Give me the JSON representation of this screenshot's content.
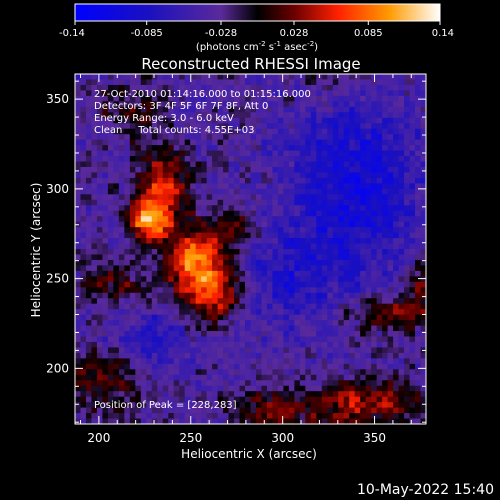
{
  "chart_data": {
    "type": "heatmap",
    "title": "Reconstructed RHESSI Image",
    "xlabel": "Heliocentric X (arcsec)",
    "ylabel": "Heliocentric Y (arcsec)",
    "xlim": [
      187,
      378
    ],
    "ylim": [
      169,
      364
    ],
    "xticks": [
      200,
      250,
      300,
      350
    ],
    "yticks": [
      200,
      250,
      300,
      350
    ],
    "colorbar": {
      "ticks": [
        "-0.14",
        "-0.085",
        "-0.028",
        "0.028",
        "0.085",
        "0.14"
      ],
      "range": [
        -0.14,
        0.14
      ],
      "unit_prefix": "(photons cm",
      "unit_exp1": "-2",
      "unit_mid": " s",
      "unit_exp2": "-1",
      "unit_mid2": " asec",
      "unit_exp3": "-2",
      "unit_suffix": ")"
    },
    "annotations": [
      "27-Oct-2010 01:14:16.000 to 01:15:16.000",
      "Detectors: 3F 4F 5F 6F 7F 8F, Att 0",
      "Energy Range: 3.0 - 6.0 keV",
      "Clean     Total counts: 4.55E+03"
    ],
    "peak_label": "Position of Peak = [228,283]",
    "peak": [
      228,
      283
    ],
    "sources": [
      {
        "x": 228,
        "y": 283,
        "amp": 0.14,
        "sx": 8,
        "sy": 9
      },
      {
        "x": 236,
        "y": 304,
        "amp": 0.085,
        "sx": 10,
        "sy": 11
      },
      {
        "x": 253,
        "y": 262,
        "amp": 0.11,
        "sx": 12,
        "sy": 14
      },
      {
        "x": 262,
        "y": 242,
        "amp": 0.08,
        "sx": 12,
        "sy": 12
      },
      {
        "x": 207,
        "y": 247,
        "amp": 0.05,
        "sx": 12,
        "sy": 8
      },
      {
        "x": 218,
        "y": 342,
        "amp": 0.04,
        "sx": 13,
        "sy": 12
      },
      {
        "x": 275,
        "y": 280,
        "amp": 0.04,
        "sx": 8,
        "sy": 8
      },
      {
        "x": 358,
        "y": 230,
        "amp": 0.06,
        "sx": 18,
        "sy": 7
      },
      {
        "x": 378,
        "y": 246,
        "amp": 0.05,
        "sx": 10,
        "sy": 10
      },
      {
        "x": 342,
        "y": 180,
        "amp": 0.07,
        "sx": 28,
        "sy": 10
      },
      {
        "x": 290,
        "y": 176,
        "amp": 0.05,
        "sx": 14,
        "sy": 8
      },
      {
        "x": 205,
        "y": 192,
        "amp": 0.05,
        "sx": 18,
        "sy": 12
      },
      {
        "x": 328,
        "y": 357,
        "amp": 0.03,
        "sx": 14,
        "sy": 8
      },
      {
        "x": 340,
        "y": 300,
        "amp": -0.07,
        "sx": 25,
        "sy": 35
      },
      {
        "x": 300,
        "y": 250,
        "amp": -0.04,
        "sx": 20,
        "sy": 20
      },
      {
        "x": 230,
        "y": 215,
        "amp": -0.04,
        "sx": 15,
        "sy": 12
      }
    ]
  },
  "footer": {
    "date": "10-May-2022 15:40"
  }
}
